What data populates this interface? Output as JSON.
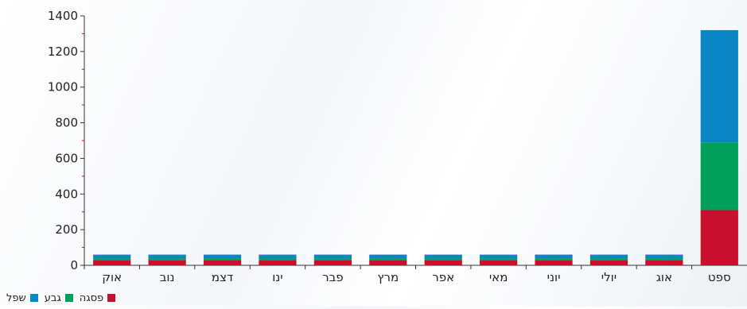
{
  "chart_data": {
    "type": "bar",
    "stacked": true,
    "categories": [
      "ספט",
      "אוג",
      "יולי",
      "יוני",
      "מאי",
      "אפר",
      "מרץ",
      "פבר",
      "ינו",
      "דצמ",
      "נוב",
      "אוק"
    ],
    "series": [
      {
        "name": "פסגה",
        "color": "#c8102e",
        "values": [
          310,
          30,
          30,
          30,
          30,
          30,
          30,
          30,
          30,
          30,
          30,
          30
        ]
      },
      {
        "name": "גבע",
        "color": "#00a05a",
        "values": [
          380,
          10,
          10,
          10,
          10,
          10,
          10,
          10,
          10,
          10,
          10,
          10
        ]
      },
      {
        "name": "שפל",
        "color": "#0a86c6",
        "values": [
          630,
          20,
          20,
          20,
          20,
          20,
          20,
          20,
          20,
          20,
          20,
          20
        ]
      }
    ],
    "ylim": [
      0,
      1400
    ],
    "yticks": [
      "0",
      "200",
      "400",
      "600",
      "800",
      "1000",
      "1200",
      "1400"
    ],
    "grid": false,
    "legend_position": "bottom-left",
    "category_order": "right-to-left"
  }
}
